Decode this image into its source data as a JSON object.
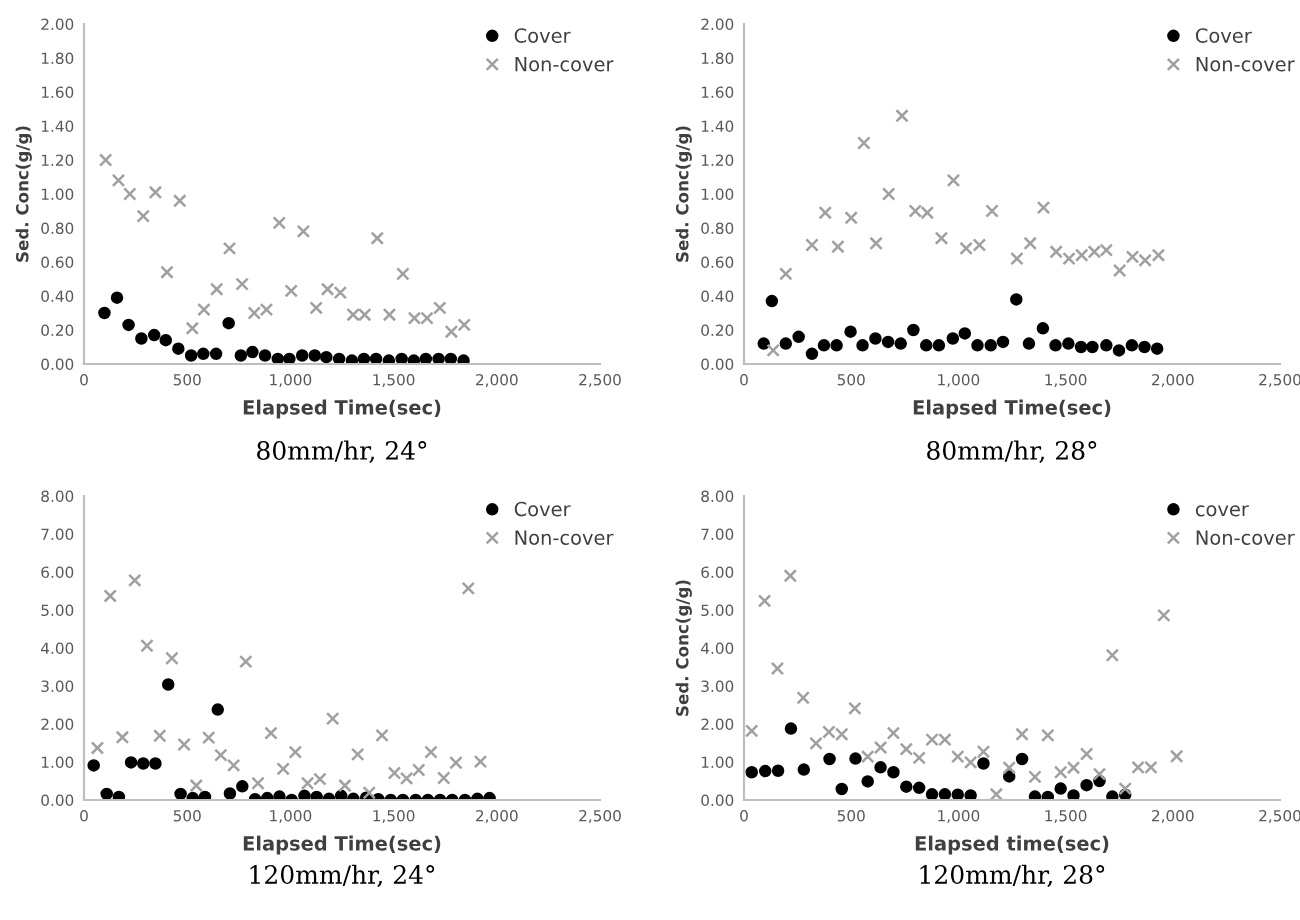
{
  "chart_data": [
    {
      "type": "scatter",
      "title": "80mm/hr, 24°",
      "xlabel": "Elapsed Time(sec)",
      "ylabel": "Sed. Conc(g/g)",
      "xlim": [
        0,
        2500
      ],
      "xticks": [
        0,
        500,
        {
          "value": 1000,
          "label": "1,000"
        },
        {
          "value": 1500,
          "label": "1,500"
        },
        {
          "value": 2000,
          "label": "2,000"
        },
        {
          "value": 2500,
          "label": "2,500"
        }
      ],
      "ylim": [
        0,
        2
      ],
      "yticks": [
        {
          "value": 0,
          "label": "0.00"
        },
        {
          "value": 0.2,
          "label": "0.20"
        },
        {
          "value": 0.4,
          "label": "0.40"
        },
        {
          "value": 0.6,
          "label": "0.60"
        },
        {
          "value": 0.8,
          "label": "0.80"
        },
        {
          "value": 1.0,
          "label": "1.00"
        },
        {
          "value": 1.2,
          "label": "1.20"
        },
        {
          "value": 1.4,
          "label": "1.40"
        },
        {
          "value": 1.6,
          "label": "1.60"
        },
        {
          "value": 1.8,
          "label": "1.80"
        },
        {
          "value": 2.0,
          "label": "2.00"
        }
      ],
      "grid": false,
      "legend": "top right",
      "series": [
        {
          "name": "Cover",
          "color": "#000000",
          "marker": "circle",
          "x": [
            99,
            160,
            216,
            278,
            340,
            396,
            457,
            519,
            578,
            640,
            701,
            760,
            816,
            877,
            939,
            995,
            1057,
            1118,
            1174,
            1236,
            1298,
            1356,
            1415,
            1477,
            1539,
            1598,
            1656,
            1718,
            1777,
            1839
          ],
          "values": [
            0.3,
            0.39,
            0.23,
            0.15,
            0.17,
            0.14,
            0.09,
            0.05,
            0.06,
            0.06,
            0.24,
            0.05,
            0.07,
            0.05,
            0.03,
            0.03,
            0.05,
            0.05,
            0.04,
            0.03,
            0.02,
            0.03,
            0.03,
            0.02,
            0.03,
            0.02,
            0.03,
            0.03,
            0.03,
            0.02
          ]
        },
        {
          "name": "Non-cover",
          "color": "#a0a0a0",
          "marker": "cross",
          "x": [
            105,
            167,
            222,
            287,
            346,
            402,
            464,
            525,
            581,
            643,
            705,
            766,
            825,
            884,
            946,
            1004,
            1063,
            1125,
            1180,
            1242,
            1304,
            1360,
            1421,
            1480,
            1545,
            1601,
            1662,
            1724,
            1780,
            1842
          ],
          "values": [
            1.2,
            1.08,
            1.0,
            0.87,
            1.01,
            0.54,
            0.96,
            0.21,
            0.32,
            0.44,
            0.68,
            0.47,
            0.3,
            0.32,
            0.83,
            0.43,
            0.78,
            0.33,
            0.44,
            0.42,
            0.29,
            0.29,
            0.74,
            0.29,
            0.53,
            0.27,
            0.27,
            0.33,
            0.19,
            0.23
          ]
        }
      ]
    },
    {
      "type": "scatter",
      "title": "80mm/hr, 28°",
      "xlabel": "Elapsed Time(sec)",
      "ylabel": "Sed. Conc(g/g)",
      "xlim": [
        0,
        2500
      ],
      "xticks": [
        0,
        500,
        {
          "value": 1000,
          "label": "1,000"
        },
        {
          "value": 1500,
          "label": "1,500"
        },
        {
          "value": 2000,
          "label": "2,000"
        },
        {
          "value": 2500,
          "label": "2,500"
        }
      ],
      "ylim": [
        0,
        2
      ],
      "yticks": [
        {
          "value": 0,
          "label": "0.00"
        },
        {
          "value": 0.2,
          "label": "0.20"
        },
        {
          "value": 0.4,
          "label": "0.40"
        },
        {
          "value": 0.6,
          "label": "0.60"
        },
        {
          "value": 0.8,
          "label": "0.80"
        },
        {
          "value": 1.0,
          "label": "1.00"
        },
        {
          "value": 1.2,
          "label": "1.20"
        },
        {
          "value": 1.4,
          "label": "1.40"
        },
        {
          "value": 1.6,
          "label": "1.60"
        },
        {
          "value": 1.8,
          "label": "1.80"
        },
        {
          "value": 2.0,
          "label": "2.00"
        }
      ],
      "grid": false,
      "legend": "top right",
      "series": [
        {
          "name": "Cover",
          "color": "#000000",
          "marker": "circle",
          "x": [
            92,
            130,
            195,
            255,
            317,
            373,
            432,
            497,
            553,
            613,
            672,
            731,
            790,
            850,
            909,
            974,
            1030,
            1089,
            1151,
            1208,
            1270,
            1329,
            1394,
            1453,
            1513,
            1572,
            1625,
            1690,
            1749,
            1809,
            1868,
            1927
          ],
          "values": [
            0.12,
            0.37,
            0.12,
            0.16,
            0.06,
            0.11,
            0.11,
            0.19,
            0.11,
            0.15,
            0.13,
            0.12,
            0.2,
            0.11,
            0.11,
            0.15,
            0.18,
            0.11,
            0.11,
            0.13,
            0.38,
            0.12,
            0.21,
            0.11,
            0.12,
            0.1,
            0.1,
            0.11,
            0.08,
            0.11,
            0.1,
            0.09
          ]
        },
        {
          "name": "Non-cover",
          "color": "#a0a0a0",
          "marker": "cross",
          "x": [
            136,
            195,
            317,
            379,
            438,
            500,
            559,
            616,
            675,
            737,
            799,
            855,
            921,
            977,
            1036,
            1098,
            1157,
            1273,
            1335,
            1397,
            1456,
            1516,
            1575,
            1634,
            1690,
            1752,
            1812,
            1871,
            1933
          ],
          "values": [
            0.08,
            0.53,
            0.7,
            0.89,
            0.69,
            0.86,
            1.3,
            0.71,
            1.0,
            1.46,
            0.9,
            0.89,
            0.74,
            1.08,
            0.68,
            0.7,
            0.9,
            0.62,
            0.71,
            0.92,
            0.66,
            0.62,
            0.64,
            0.66,
            0.67,
            0.55,
            0.63,
            0.61,
            0.64
          ]
        }
      ]
    },
    {
      "type": "scatter",
      "title": "120mm/hr, 24°",
      "xlabel": "Elapsed Time(sec)",
      "xlim": [
        0,
        2500
      ],
      "xticks": [
        0,
        500,
        {
          "value": 1000,
          "label": "1,000"
        },
        {
          "value": 1500,
          "label": "1,500"
        },
        {
          "value": 2000,
          "label": "2,000"
        },
        {
          "value": 2500,
          "label": "2,500"
        }
      ],
      "ylim": [
        0,
        8
      ],
      "yticks": [
        {
          "value": 0,
          "label": "0.00"
        },
        {
          "value": 1,
          "label": "1.00"
        },
        {
          "value": 2,
          "label": "2.00"
        },
        {
          "value": 3,
          "label": "3.00"
        },
        {
          "value": 4,
          "label": "4.00"
        },
        {
          "value": 5,
          "label": "5.00"
        },
        {
          "value": 6,
          "label": "6.00"
        },
        {
          "value": 7,
          "label": "7.00"
        },
        {
          "value": 8,
          "label": "8.00"
        }
      ],
      "grid": false,
      "legend": "top right",
      "series": [
        {
          "name": "Cover",
          "color": "#000000",
          "marker": "circle",
          "x": [
            47,
            110,
            169,
            228,
            287,
            346,
            408,
            468,
            527,
            586,
            648,
            707,
            767,
            829,
            888,
            947,
            1006,
            1068,
            1127,
            1187,
            1246,
            1305,
            1367,
            1426,
            1486,
            1545,
            1607,
            1666,
            1725,
            1784,
            1846,
            1906,
            1965
          ],
          "values": [
            0.91,
            0.16,
            0.08,
            0.99,
            0.96,
            0.96,
            3.04,
            0.16,
            0.05,
            0.08,
            2.38,
            0.17,
            0.36,
            0.02,
            0.05,
            0.09,
            0.0,
            0.11,
            0.08,
            0.03,
            0.11,
            0.03,
            0.06,
            0.02,
            0.0,
            0.0,
            0.0,
            0.0,
            0.0,
            0.0,
            0.0,
            0.03,
            0.05
          ]
        },
        {
          "name": "Non-cover",
          "color": "#a0a0a0",
          "marker": "cross",
          "x": [
            65,
            127,
            186,
            246,
            305,
            367,
            426,
            485,
            544,
            604,
            663,
            725,
            784,
            843,
            906,
            965,
            1024,
            1083,
            1143,
            1205,
            1264,
            1326,
            1382,
            1444,
            1504,
            1563,
            1622,
            1681,
            1743,
            1802,
            1862,
            1921
          ],
          "values": [
            1.37,
            5.37,
            1.65,
            5.78,
            4.06,
            1.69,
            3.73,
            1.46,
            0.38,
            1.64,
            1.18,
            0.91,
            3.64,
            0.44,
            1.76,
            0.82,
            1.26,
            0.44,
            0.55,
            2.14,
            0.38,
            1.2,
            0.19,
            1.7,
            0.71,
            0.57,
            0.79,
            1.26,
            0.58,
            0.98,
            5.57,
            1.01
          ]
        }
      ]
    },
    {
      "type": "scatter",
      "title": "120mm/hr, 28°",
      "xlabel": "Elapsed time(sec)",
      "ylabel": "Sed. Conc(g/g)",
      "xlim": [
        0,
        2500
      ],
      "xticks": [
        0,
        500,
        {
          "value": 1000,
          "label": "1,000"
        },
        {
          "value": 1500,
          "label": "1,500"
        },
        {
          "value": 2000,
          "label": "2,000"
        },
        {
          "value": 2500,
          "label": "2,500"
        }
      ],
      "ylim": [
        0,
        8
      ],
      "yticks": [
        {
          "value": 0,
          "label": "0.00"
        },
        {
          "value": 1,
          "label": "1.00"
        },
        {
          "value": 2,
          "label": "2.00"
        },
        {
          "value": 3,
          "label": "3.00"
        },
        {
          "value": 4,
          "label": "4.00"
        },
        {
          "value": 5,
          "label": "5.00"
        },
        {
          "value": 6,
          "label": "6.00"
        },
        {
          "value": 7,
          "label": "7.00"
        },
        {
          "value": 8,
          "label": "8.00"
        }
      ],
      "grid": false,
      "legend": "top right",
      "series": [
        {
          "name": "cover",
          "color": "#000000",
          "marker": "circle",
          "x": [
            36,
            99,
            159,
            219,
            279,
            399,
            456,
            520,
            577,
            637,
            697,
            757,
            817,
            877,
            937,
            997,
            1057,
            1117,
            1237,
            1297,
            1357,
            1417,
            1477,
            1537,
            1598,
            1658,
            1718,
            1778
          ],
          "values": [
            0.73,
            0.76,
            0.77,
            1.88,
            0.8,
            1.08,
            0.29,
            1.09,
            0.49,
            0.86,
            0.73,
            0.35,
            0.32,
            0.15,
            0.15,
            0.14,
            0.12,
            0.96,
            0.62,
            1.08,
            0.09,
            0.08,
            0.3,
            0.12,
            0.39,
            0.5,
            0.09,
            0.14
          ]
        },
        {
          "name": "Non-cover",
          "color": "#a0a0a0",
          "marker": "cross",
          "x": [
            36,
            96,
            156,
            216,
            276,
            336,
            396,
            456,
            517,
            577,
            637,
            697,
            757,
            817,
            877,
            937,
            997,
            1057,
            1117,
            1177,
            1237,
            1297,
            1357,
            1417,
            1477,
            1537,
            1598,
            1658,
            1718,
            1778,
            1838,
            1898,
            1958,
            2018
          ],
          "values": [
            1.82,
            5.24,
            3.46,
            5.9,
            2.69,
            1.49,
            1.79,
            1.73,
            2.41,
            1.14,
            1.38,
            1.76,
            1.34,
            1.11,
            1.59,
            1.59,
            1.14,
            0.99,
            1.27,
            0.15,
            0.85,
            1.73,
            0.61,
            1.7,
            0.73,
            0.85,
            1.21,
            0.68,
            3.81,
            0.3,
            0.86,
            0.86,
            4.86,
            1.15
          ]
        }
      ]
    }
  ]
}
